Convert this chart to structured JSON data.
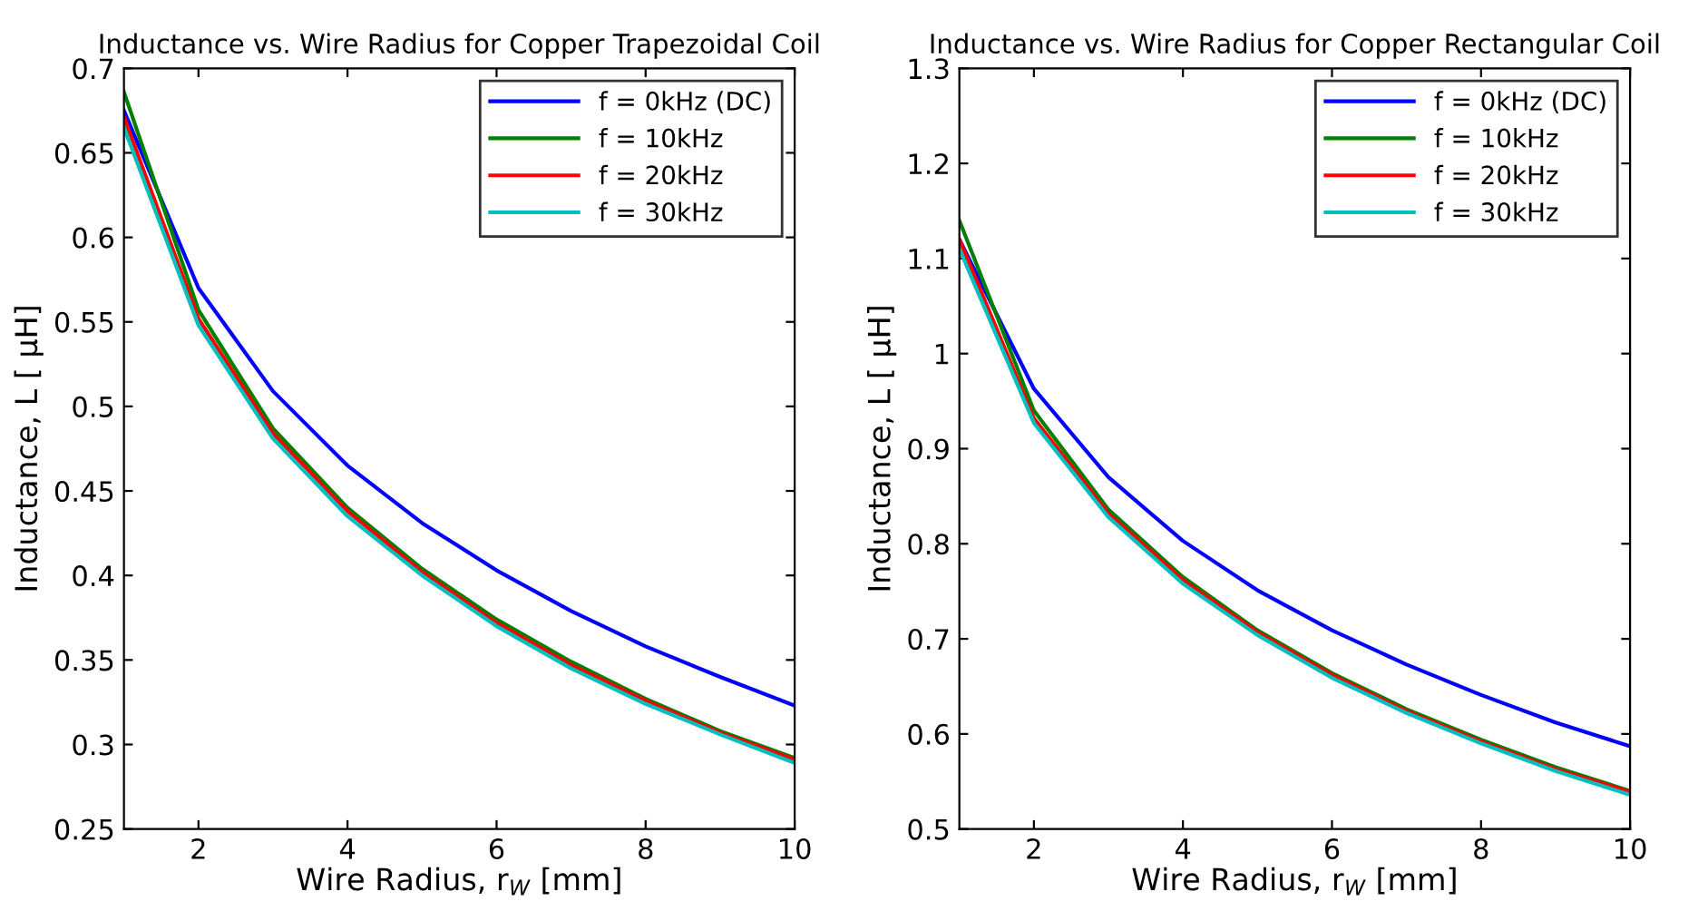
{
  "chart_data": [
    {
      "type": "line",
      "title": "Inductance vs. Wire Radius for Copper Trapezoidal Coil",
      "xlabel": "Wire Radius, r$_{W}$ [mm]",
      "ylabel": "Inductance, L [ μH]",
      "x": [
        1,
        2,
        3,
        4,
        5,
        6,
        7,
        8,
        9,
        10
      ],
      "xlim": [
        1,
        10
      ],
      "xticks": [
        2,
        4,
        6,
        8,
        10
      ],
      "ylim": [
        0.25,
        0.7
      ],
      "yticks": [
        0.25,
        0.3,
        0.35,
        0.4,
        0.45,
        0.5,
        0.55,
        0.6,
        0.65,
        0.7
      ],
      "grid": false,
      "legend": "top right",
      "marker": "none",
      "line_style": "solid",
      "series": [
        {
          "name": "f = 0kHz (DC)",
          "color": "#0000ff",
          "values": [
            0.675,
            0.57,
            0.509,
            0.465,
            0.431,
            0.403,
            0.379,
            0.358,
            0.34,
            0.323
          ]
        },
        {
          "name": "f = 10kHz",
          "color": "#008000",
          "values": [
            0.686,
            0.557,
            0.487,
            0.44,
            0.404,
            0.374,
            0.349,
            0.327,
            0.308,
            0.292
          ]
        },
        {
          "name": "f = 20kHz",
          "color": "#ff0000",
          "values": [
            0.671,
            0.552,
            0.484,
            0.438,
            0.402,
            0.372,
            0.347,
            0.326,
            0.307,
            0.291
          ]
        },
        {
          "name": "f = 30kHz",
          "color": "#00bfbf",
          "values": [
            0.665,
            0.548,
            0.481,
            0.435,
            0.4,
            0.37,
            0.345,
            0.324,
            0.306,
            0.289
          ]
        }
      ]
    },
    {
      "type": "line",
      "title": "Inductance vs. Wire Radius for Copper Rectangular Coil",
      "xlabel": "Wire Radius, r$_{W}$ [mm]",
      "ylabel": "Inductance, L [ μH]",
      "x": [
        1,
        2,
        3,
        4,
        5,
        6,
        7,
        8,
        9,
        10
      ],
      "xlim": [
        1,
        10
      ],
      "xticks": [
        2,
        4,
        6,
        8,
        10
      ],
      "ylim": [
        0.5,
        1.3
      ],
      "yticks": [
        0.5,
        0.6,
        0.7,
        0.8,
        0.9,
        1,
        1.1,
        1.2,
        1.3
      ],
      "grid": false,
      "legend": "top right",
      "marker": "none",
      "line_style": "solid",
      "series": [
        {
          "name": "f = 0kHz (DC)",
          "color": "#0000ff",
          "values": [
            1.12,
            0.963,
            0.87,
            0.803,
            0.751,
            0.709,
            0.673,
            0.641,
            0.612,
            0.587
          ]
        },
        {
          "name": "f = 10kHz",
          "color": "#008000",
          "values": [
            1.14,
            0.94,
            0.836,
            0.765,
            0.709,
            0.664,
            0.626,
            0.594,
            0.565,
            0.54
          ]
        },
        {
          "name": "f = 20kHz",
          "color": "#ff0000",
          "values": [
            1.12,
            0.932,
            0.832,
            0.762,
            0.707,
            0.662,
            0.624,
            0.592,
            0.563,
            0.539
          ]
        },
        {
          "name": "f = 30kHz",
          "color": "#00bfbf",
          "values": [
            1.11,
            0.927,
            0.828,
            0.758,
            0.704,
            0.659,
            0.622,
            0.59,
            0.561,
            0.536
          ]
        }
      ]
    }
  ]
}
